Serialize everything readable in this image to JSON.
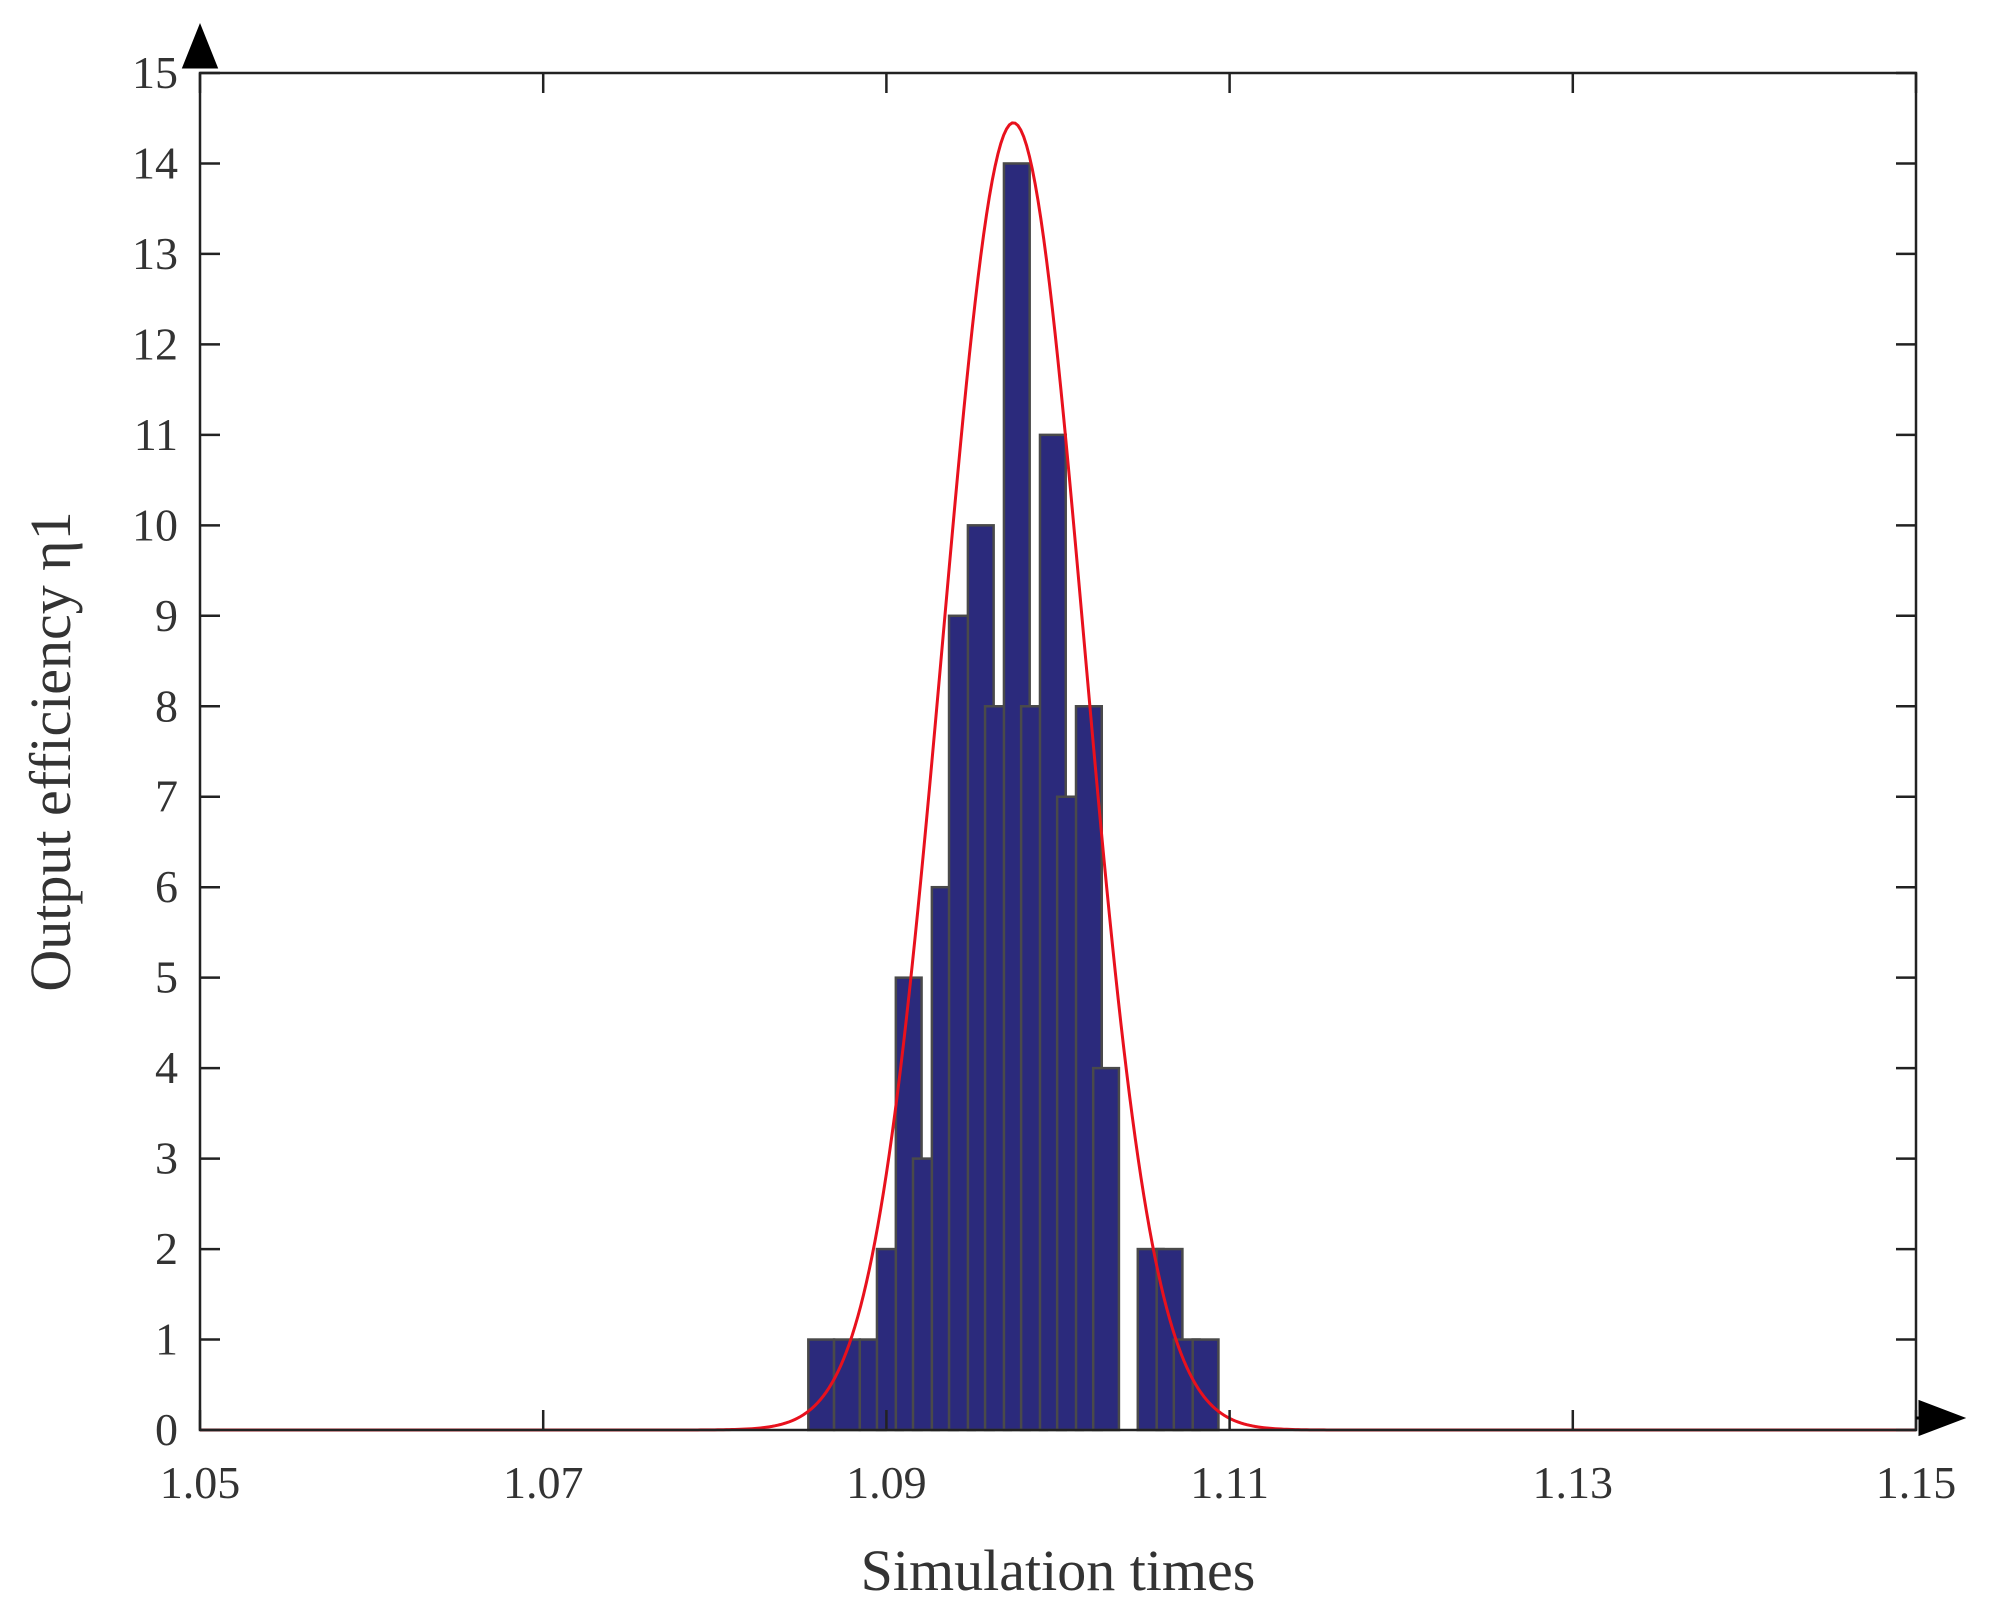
{
  "chart_data": {
    "type": "bar",
    "xlabel": "Simulation times",
    "ylabel": "Output efficiency η1",
    "xlim": [
      1.05,
      1.15
    ],
    "ylim": [
      0,
      15
    ],
    "x_ticks": [
      "1.05",
      "1.07",
      "1.09",
      "1.11",
      "1.13",
      "1.15"
    ],
    "y_ticks": [
      "0",
      "1",
      "2",
      "3",
      "4",
      "5",
      "6",
      "7",
      "8",
      "9",
      "10",
      "11",
      "12",
      "13",
      "14",
      "15"
    ],
    "bin_width": 0.0015,
    "bins": [
      {
        "x": 1.0862,
        "value": 1
      },
      {
        "x": 1.0877,
        "value": 1
      },
      {
        "x": 1.0892,
        "value": 1
      },
      {
        "x": 1.0902,
        "value": 2
      },
      {
        "x": 1.0913,
        "value": 5
      },
      {
        "x": 1.0923,
        "value": 3
      },
      {
        "x": 1.0934,
        "value": 6
      },
      {
        "x": 1.0944,
        "value": 9
      },
      {
        "x": 1.0955,
        "value": 10
      },
      {
        "x": 1.0965,
        "value": 8
      },
      {
        "x": 1.0976,
        "value": 14
      },
      {
        "x": 1.0986,
        "value": 8
      },
      {
        "x": 1.0997,
        "value": 11
      },
      {
        "x": 1.1007,
        "value": 7
      },
      {
        "x": 1.1018,
        "value": 8
      },
      {
        "x": 1.1028,
        "value": 4
      },
      {
        "x": 1.1054,
        "value": 2
      },
      {
        "x": 1.1065,
        "value": 2
      },
      {
        "x": 1.1075,
        "value": 1
      },
      {
        "x": 1.1086,
        "value": 1
      }
    ],
    "fit_curve": {
      "type": "normal",
      "mean": 1.0974,
      "std": 0.0041,
      "peak": 14.45
    },
    "bar_color": "#2b2a7c",
    "curve_color": "#e8111d",
    "grid": false
  }
}
